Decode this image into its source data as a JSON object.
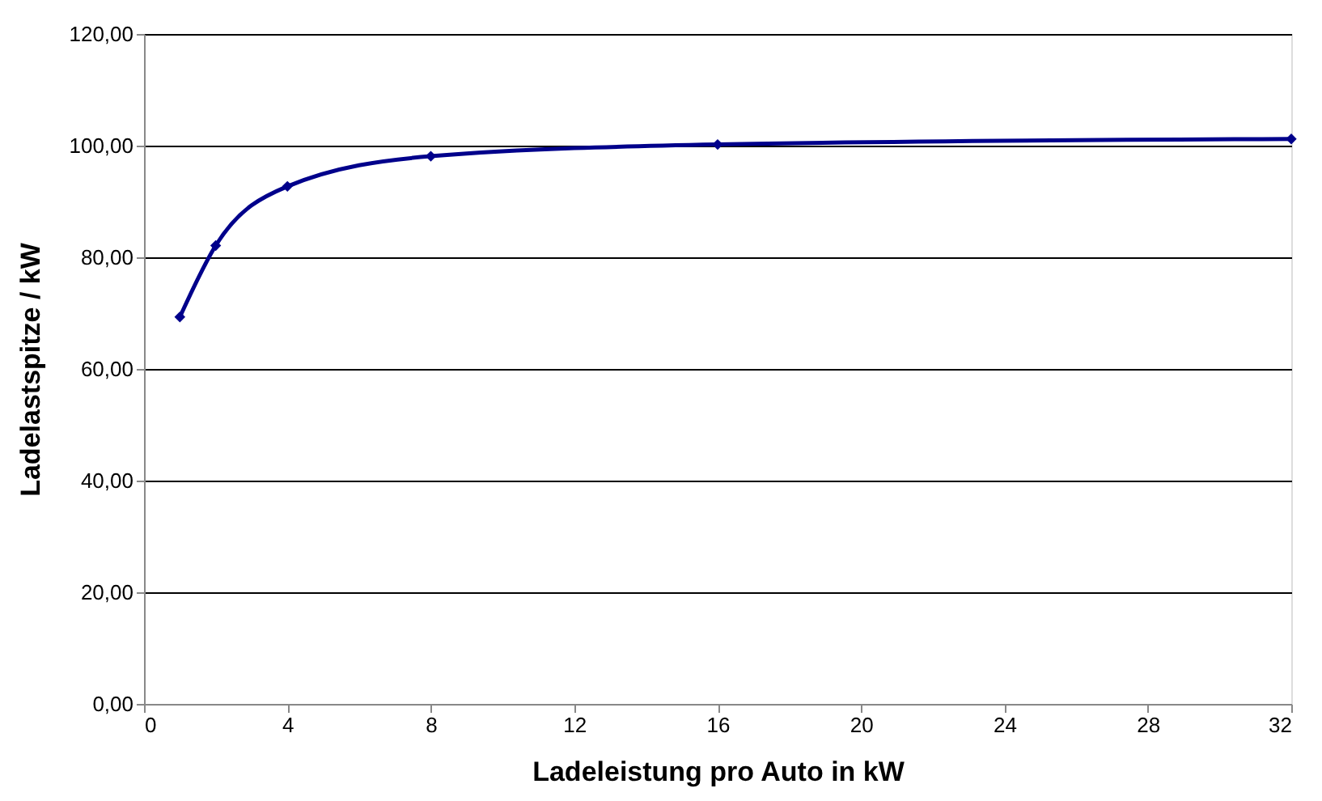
{
  "chart_data": {
    "type": "line",
    "xlabel": "Ladeleistung pro Auto in kW",
    "ylabel": "Ladelastspitze / kW",
    "x": [
      1,
      2,
      4,
      8,
      16,
      32
    ],
    "series": [
      {
        "color": "#00008b",
        "values": [
          69.3,
          82.1,
          92.7,
          98.1,
          100.2,
          101.2
        ]
      }
    ],
    "xlim": [
      0,
      32
    ],
    "xticks": [
      0,
      4,
      8,
      12,
      16,
      20,
      24,
      28,
      32
    ],
    "ylim": [
      0,
      120
    ],
    "yticks": [
      {
        "value": 0,
        "label": "0,00"
      },
      {
        "value": 20,
        "label": "20,00"
      },
      {
        "value": 40,
        "label": "40,00"
      },
      {
        "value": 60,
        "label": "60,00"
      },
      {
        "value": 80,
        "label": "80,00"
      },
      {
        "value": 100,
        "label": "100,00"
      },
      {
        "value": 120,
        "label": "120,00"
      }
    ],
    "grid": "y",
    "marker": "diamond",
    "line_style": "solid",
    "legend": false
  }
}
